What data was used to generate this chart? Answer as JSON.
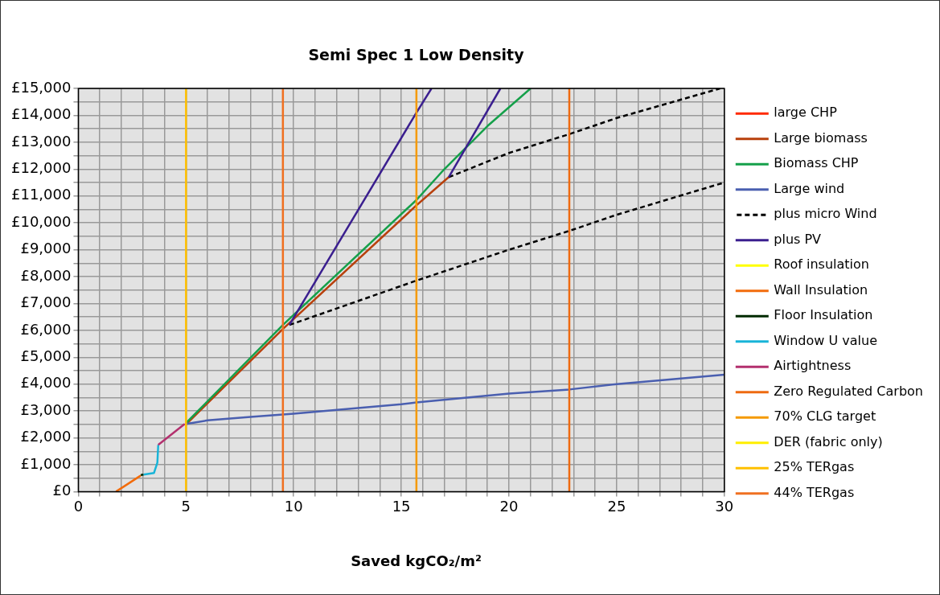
{
  "chart_data": {
    "type": "line",
    "title": "Semi Spec 1 Low Density",
    "xlabel": "Saved kgCO₂/m²",
    "xlim": [
      0,
      30
    ],
    "xticks": [
      0,
      {
        "value": 1,
        "label": null
      },
      {
        "value": 2,
        "label": null
      },
      {
        "value": 3,
        "label": null
      },
      {
        "value": 4,
        "label": null
      },
      5,
      {
        "value": 6,
        "label": null
      },
      {
        "value": 7,
        "label": null
      },
      {
        "value": 8,
        "label": null
      },
      {
        "value": 9,
        "label": null
      },
      10,
      {
        "value": 11,
        "label": null
      },
      {
        "value": 12,
        "label": null
      },
      {
        "value": 13,
        "label": null
      },
      {
        "value": 14,
        "label": null
      },
      15,
      {
        "value": 16,
        "label": null
      },
      {
        "value": 17,
        "label": null
      },
      {
        "value": 18,
        "label": null
      },
      {
        "value": 19,
        "label": null
      },
      20,
      {
        "value": 21,
        "label": null
      },
      {
        "value": 22,
        "label": null
      },
      {
        "value": 23,
        "label": null
      },
      {
        "value": 24,
        "label": null
      },
      25,
      {
        "value": 26,
        "label": null
      },
      {
        "value": 27,
        "label": null
      },
      {
        "value": 28,
        "label": null
      },
      {
        "value": 29,
        "label": null
      },
      30
    ],
    "ylim": [
      0,
      15000
    ],
    "yticks": [
      {
        "value": 0,
        "label": "£0"
      },
      {
        "value": 500,
        "label": null
      },
      {
        "value": 1000,
        "label": "£1,000"
      },
      {
        "value": 1500,
        "label": null
      },
      {
        "value": 2000,
        "label": "£2,000"
      },
      {
        "value": 2500,
        "label": null
      },
      {
        "value": 3000,
        "label": "£3,000"
      },
      {
        "value": 3500,
        "label": null
      },
      {
        "value": 4000,
        "label": "£4,000"
      },
      {
        "value": 4500,
        "label": null
      },
      {
        "value": 5000,
        "label": "£5,000"
      },
      {
        "value": 5500,
        "label": null
      },
      {
        "value": 6000,
        "label": "£6,000"
      },
      {
        "value": 6500,
        "label": null
      },
      {
        "value": 7000,
        "label": "£7,000"
      },
      {
        "value": 7500,
        "label": null
      },
      {
        "value": 8000,
        "label": "£8,000"
      },
      {
        "value": 8500,
        "label": null
      },
      {
        "value": 9000,
        "label": "£9,000"
      },
      {
        "value": 9500,
        "label": null
      },
      {
        "value": 10000,
        "label": "£10,000"
      },
      {
        "value": 10500,
        "label": null
      },
      {
        "value": 11000,
        "label": "£11,000"
      },
      {
        "value": 11500,
        "label": null
      },
      {
        "value": 12000,
        "label": "£12,000"
      },
      {
        "value": 12500,
        "label": null
      },
      {
        "value": 13000,
        "label": "£13,000"
      },
      {
        "value": 13500,
        "label": null
      },
      {
        "value": 14000,
        "label": "£14,000"
      },
      {
        "value": 14500,
        "label": null
      },
      {
        "value": 15000,
        "label": "£15,000"
      }
    ],
    "grid": true,
    "legend": "right",
    "marker": "none",
    "series": [
      {
        "name": "large CHP",
        "color": "#ff2a00"
      },
      {
        "name": "Large biomass",
        "color": "#b8400c",
        "x": [
          5,
          9.5,
          15.7,
          17.2
        ],
        "values": [
          2500,
          6050,
          10650,
          11700
        ]
      },
      {
        "name": "Biomass CHP",
        "color": "#15a04a",
        "x": [
          5,
          9.5,
          15.7,
          17,
          19,
          21
        ],
        "values": [
          2550,
          6200,
          10850,
          12000,
          13600,
          15000
        ]
      },
      {
        "name": "Large wind",
        "color": "#4a5fb0",
        "x": [
          5,
          6,
          8,
          10,
          15,
          15.7,
          20,
          22.8,
          25,
          30
        ],
        "values": [
          2520,
          2650,
          2780,
          2900,
          3250,
          3320,
          3650,
          3800,
          4000,
          4350
        ]
      },
      {
        "name": "plus micro Wind",
        "color": "#000000",
        "line_style": "dashed",
        "x": [
          9.8,
          15.7,
          20,
          22.8,
          25,
          30
        ],
        "values": [
          6200,
          7850,
          9000,
          9700,
          10300,
          11500
        ]
      },
      {
        "color": "#000000",
        "line_style": "dashed",
        "x": [
          17.2,
          20,
          22.8,
          25,
          29.8
        ],
        "values": [
          11700,
          12600,
          13300,
          13900,
          15000
        ]
      },
      {
        "name": "plus PV",
        "color": "#3b1f8f",
        "x": [
          9.8,
          15.7,
          16.4
        ],
        "values": [
          6200,
          14100,
          15000
        ]
      },
      {
        "color": "#3b1f8f",
        "x": [
          17.2,
          19.6
        ],
        "values": [
          11700,
          15000
        ]
      },
      {
        "name": "Roof insulation",
        "color": "#ffff00"
      },
      {
        "name": "Wall Insulation",
        "color": "#f26c0c",
        "x": [
          1.75,
          2.27,
          2.9
        ],
        "values": [
          0,
          270,
          600
        ]
      },
      {
        "name": "Floor Insulation",
        "color": "#002a00",
        "x": [
          2.9,
          3.03
        ],
        "values": [
          620,
          630
        ]
      },
      {
        "name": "Window U value",
        "color": "#18b4d8",
        "x": [
          3.03,
          3.51,
          3.67,
          3.71
        ],
        "values": [
          630,
          690,
          1080,
          1740
        ]
      },
      {
        "name": "Airtightness",
        "color": "#b3306e",
        "x": [
          3.71,
          4.94
        ],
        "values": [
          1740,
          2520
        ]
      },
      {
        "name": "Zero Regulated Carbon",
        "color": "#ee6a10",
        "x": [
          22.8,
          22.8
        ],
        "values": [
          0,
          15000
        ]
      },
      {
        "name": "70% CLG target",
        "color": "#f59a00",
        "x": [
          15.7,
          15.7
        ],
        "values": [
          0,
          15000
        ]
      },
      {
        "name": "DER (fabric only)",
        "color": "#ffee00"
      },
      {
        "name": "25% TERgas",
        "color": "#ffc000",
        "x": [
          5,
          5
        ],
        "values": [
          0,
          15000
        ]
      },
      {
        "name": "44% TERgas",
        "color": "#f07020",
        "x": [
          9.5,
          9.5
        ],
        "values": [
          0,
          15000
        ]
      }
    ]
  }
}
